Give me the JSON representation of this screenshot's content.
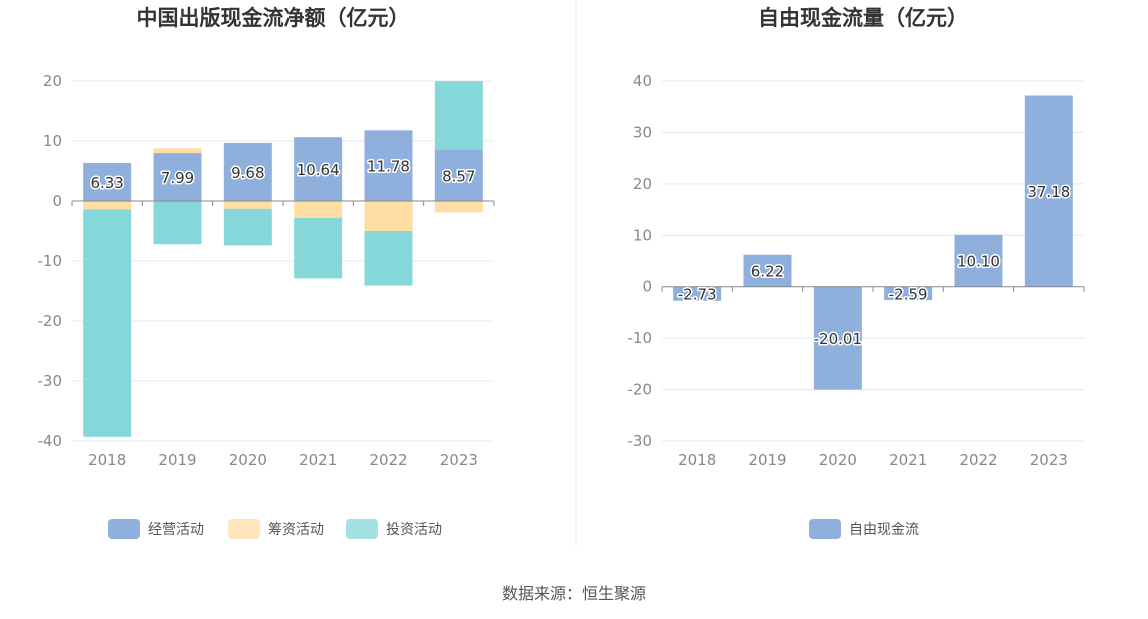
{
  "source": "数据来源：恒生聚源",
  "chart_data": [
    {
      "type": "bar",
      "stacked": true,
      "title": "中国出版现金流净额（亿元）",
      "categories": [
        "2018",
        "2019",
        "2020",
        "2021",
        "2022",
        "2023"
      ],
      "ylim": [
        -40,
        20
      ],
      "yticks": [
        20,
        10,
        0,
        -10,
        -20,
        -30,
        -40
      ],
      "grid": true,
      "legend_position": "bottom",
      "series": [
        {
          "name": "经营活动",
          "color": "#8fb0dc",
          "values": [
            6.33,
            7.99,
            9.68,
            10.64,
            11.78,
            8.57
          ],
          "labels": [
            "6.33",
            "7.99",
            "9.68",
            "10.64",
            "11.78",
            "8.57"
          ]
        },
        {
          "name": "筹资活动",
          "color": "#ffdea5",
          "values": [
            -1.4,
            0.8,
            -1.3,
            -2.8,
            -5.0,
            -1.9
          ]
        },
        {
          "name": "投资活动",
          "color": "#86d7da",
          "values": [
            -37.9,
            -7.2,
            -6.1,
            -10.1,
            -9.1,
            11.4
          ]
        }
      ]
    },
    {
      "type": "bar",
      "title": "自由现金流量（亿元）",
      "categories": [
        "2018",
        "2019",
        "2020",
        "2021",
        "2022",
        "2023"
      ],
      "ylim": [
        -30,
        40
      ],
      "yticks": [
        40,
        30,
        20,
        10,
        0,
        -10,
        -20,
        -30
      ],
      "grid": true,
      "legend_position": "bottom",
      "series": [
        {
          "name": "自由现金流",
          "color": "#8fb0dc",
          "values": [
            -2.73,
            6.22,
            -20.01,
            -2.59,
            10.1,
            37.18
          ],
          "labels": [
            "-2.73",
            "6.22",
            "-20.01",
            "-2.59",
            "10.10",
            "37.18"
          ]
        }
      ]
    }
  ]
}
